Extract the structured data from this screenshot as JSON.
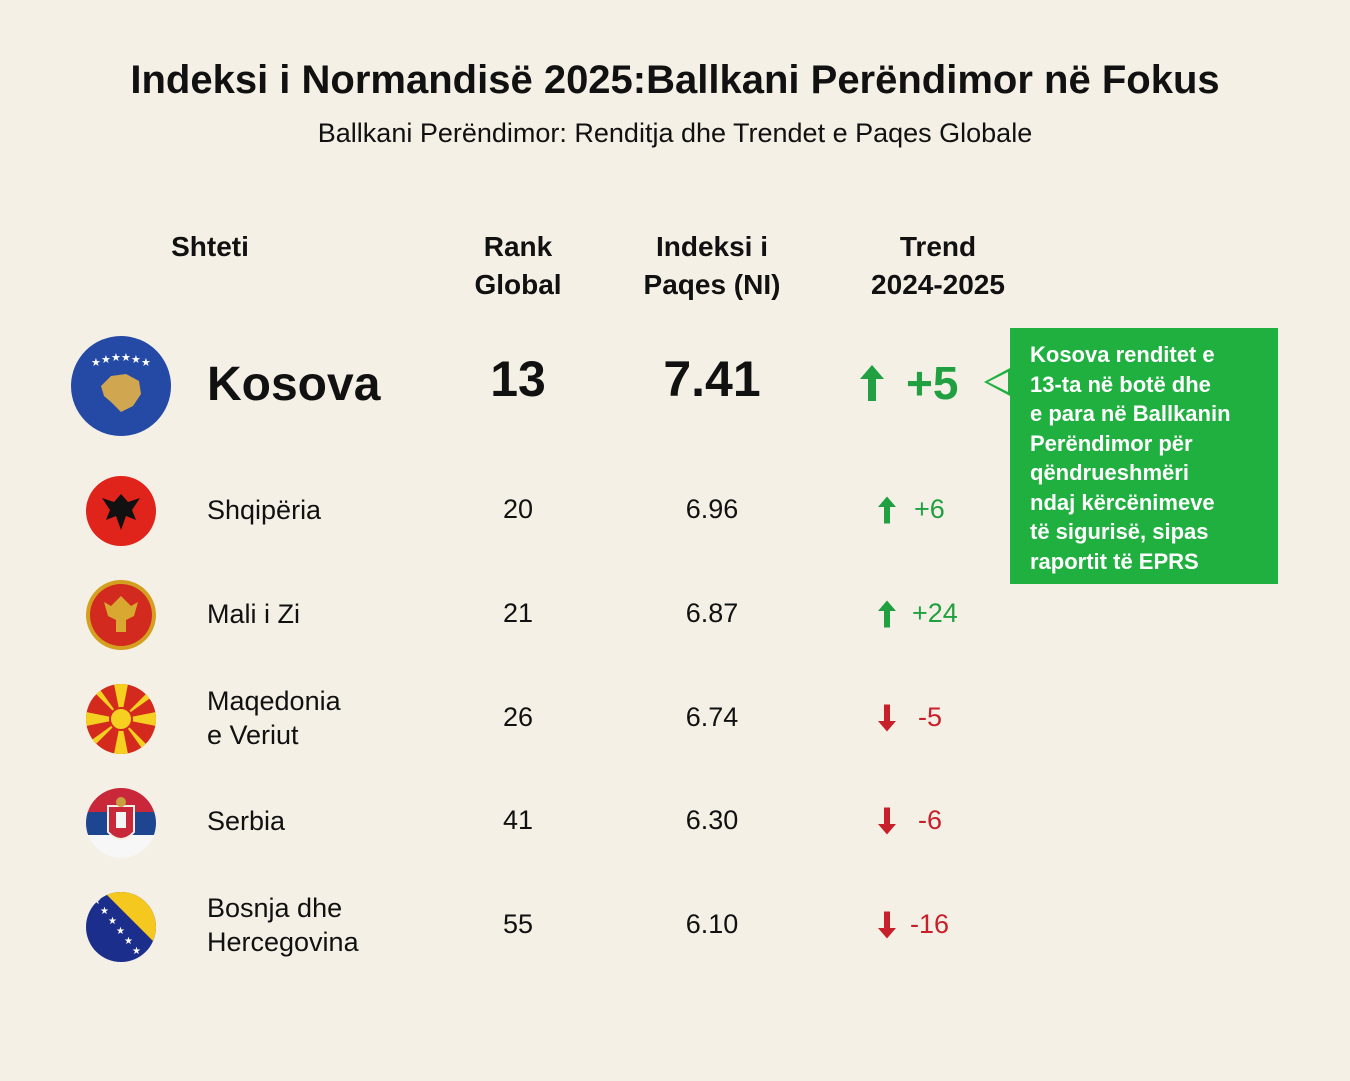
{
  "title": "Indeksi i Normandisë 2025:Ballkani Perëndimor në Fokus",
  "subtitle": "Ballkani Perëndimor: Renditja dhe Trendet e Paqes Globale",
  "headers": {
    "country": "Shteti",
    "rank": [
      "Rank",
      "Global"
    ],
    "index": [
      "Indeksi i",
      "Paqes (NI)"
    ],
    "trend": [
      "Trend",
      "2024-2025"
    ]
  },
  "rows": [
    {
      "name": [
        "Kosova"
      ],
      "rank": "13",
      "index": "7.41",
      "trend": "+5",
      "dir": "up",
      "flag": "kosovo-flag-icon"
    },
    {
      "name": [
        "Shqipëria"
      ],
      "rank": "20",
      "index": "6.96",
      "trend": "+6",
      "dir": "up",
      "flag": "albania-flag-icon"
    },
    {
      "name": [
        "Mali i Zi"
      ],
      "rank": "21",
      "index": "6.87",
      "trend": "+24",
      "dir": "up",
      "flag": "montenegro-flag-icon"
    },
    {
      "name": [
        "Maqedonia",
        "e Veriut"
      ],
      "rank": "26",
      "index": "6.74",
      "trend": "-5",
      "dir": "down",
      "flag": "north-macedonia-flag-icon"
    },
    {
      "name": [
        "Serbia"
      ],
      "rank": "41",
      "index": "6.30",
      "trend": "-6",
      "dir": "down",
      "flag": "serbia-flag-icon"
    },
    {
      "name": [
        "Bosnja dhe",
        "Hercegovina"
      ],
      "rank": "55",
      "index": "6.10",
      "trend": "-16",
      "dir": "down",
      "flag": "bosnia-flag-icon"
    }
  ],
  "callout": [
    "Kosova renditet e",
    "13-ta në botë dhe",
    "e para në Ballkanin",
    "Perëndimor për",
    "qëndrueshmëri",
    "ndaj kërcënimeve",
    "të sigurisë, sipas",
    "raportit  të EPRS"
  ],
  "colors": {
    "background": "#f4f0e6",
    "up": "#20a040",
    "down": "#c8202a",
    "callout": "#20b040"
  }
}
